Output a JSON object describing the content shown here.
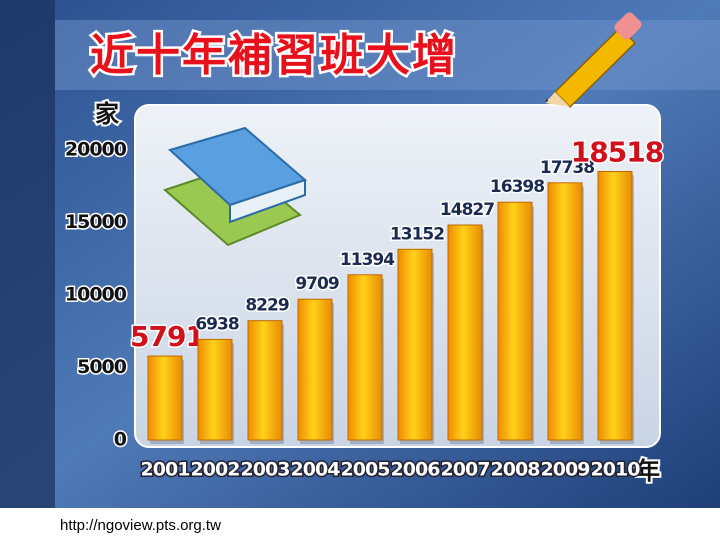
{
  "chart_data": {
    "type": "bar",
    "title": "近十年補習班大增",
    "y_label": "家",
    "x_label": "年",
    "categories": [
      "2001",
      "2002",
      "2003",
      "2004",
      "2005",
      "2006",
      "2007",
      "2008",
      "2009",
      "2010"
    ],
    "values": [
      5791,
      6938,
      8229,
      9709,
      11394,
      13152,
      14827,
      16398,
      17738,
      18518
    ],
    "ylim": [
      0,
      20000
    ],
    "yticks": [
      0,
      5000,
      10000,
      15000,
      20000
    ],
    "source": "http://ngoview.pts.org.tw"
  }
}
